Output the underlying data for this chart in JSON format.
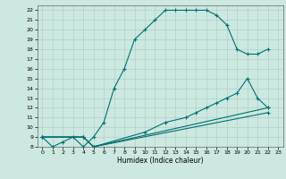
{
  "xlabel": "Humidex (Indice chaleur)",
  "bg_color": "#cce8e0",
  "line_color": "#007070",
  "xlim": [
    -0.5,
    23.5
  ],
  "ylim": [
    8,
    22.5
  ],
  "xticks": [
    0,
    1,
    2,
    3,
    4,
    5,
    6,
    7,
    8,
    9,
    10,
    11,
    12,
    13,
    14,
    15,
    16,
    17,
    18,
    19,
    20,
    21,
    22,
    23
  ],
  "yticks": [
    8,
    9,
    10,
    11,
    12,
    13,
    14,
    15,
    16,
    17,
    18,
    19,
    20,
    21,
    22
  ],
  "curve1_x": [
    0,
    1,
    2,
    3,
    4,
    5,
    6,
    7,
    8,
    9,
    10,
    11,
    12,
    13,
    14,
    15,
    16,
    17,
    18,
    19,
    20,
    21,
    22
  ],
  "curve1_y": [
    9,
    8,
    8.5,
    9,
    8,
    9,
    10.5,
    14,
    16,
    19,
    20,
    21,
    22,
    22,
    22,
    22,
    22,
    21.5,
    20.5,
    18,
    17.5,
    17.5,
    18
  ],
  "curve2_x": [
    0,
    4,
    5,
    10,
    12,
    14,
    15,
    16,
    17,
    18,
    19,
    20,
    21,
    22
  ],
  "curve2_y": [
    9,
    9,
    8,
    9.5,
    10.5,
    11,
    11.5,
    12,
    12.5,
    13,
    13.5,
    15,
    13,
    12
  ],
  "curve3_x": [
    0,
    4,
    5,
    22
  ],
  "curve3_y": [
    9,
    9,
    8,
    11.5
  ],
  "curve4_x": [
    0,
    4,
    5,
    22
  ],
  "curve4_y": [
    9,
    9,
    8,
    12
  ]
}
